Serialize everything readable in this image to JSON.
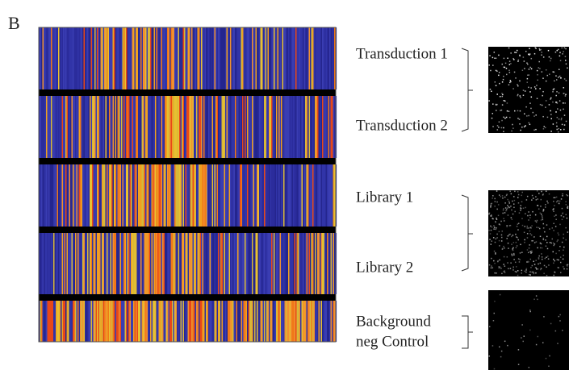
{
  "panel_label": "B",
  "groups": [
    {
      "labels": [
        "Transduction 1",
        "Transduction 2"
      ]
    },
    {
      "labels": [
        "Library 1",
        "Library 2"
      ]
    },
    {
      "labels": [
        "Background",
        "neg Control"
      ]
    }
  ]
}
